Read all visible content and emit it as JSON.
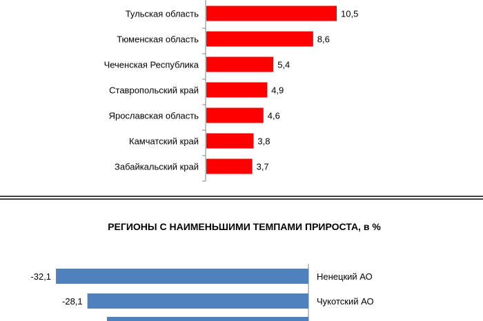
{
  "chart_data": [
    {
      "type": "bar",
      "orientation": "horizontal",
      "title": "",
      "categories": [
        "Тульская область",
        "Тюменская область",
        "Чеченская Республика",
        "Ставропольский край",
        "Ярославская область",
        "Камчатский край",
        "Забайкальский край"
      ],
      "values": [
        10.5,
        8.6,
        5.4,
        4.9,
        4.6,
        3.8,
        3.7
      ],
      "value_labels": [
        "10,5",
        "8,6",
        "5,4",
        "4,9",
        "4,6",
        "3,8",
        "3,7"
      ],
      "color": "#ff0000",
      "grid": false
    },
    {
      "type": "bar",
      "orientation": "horizontal",
      "title": "РЕГИОНЫ С НАИМЕНЬШИМИ ТЕМПАМИ ПРИРОСТА, в %",
      "categories": [
        "Ненецкий АО",
        "Чукотский АО"
      ],
      "values": [
        -32.1,
        -28.1
      ],
      "value_labels": [
        "-32,1",
        "-28,1"
      ],
      "color": "#4f81bd",
      "grid": false
    }
  ]
}
